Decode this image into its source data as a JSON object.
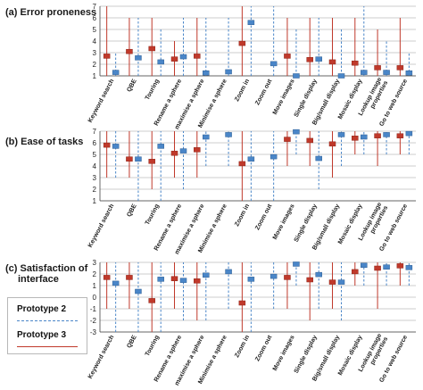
{
  "colors": {
    "prototype2": "#4a86c8",
    "prototype3": "#c0392b",
    "grid": "#9a9a9a",
    "axis": "#444444"
  },
  "legend": {
    "prototype2": "Prototype 2",
    "prototype3": "Prototype 3"
  },
  "chart_data": [
    {
      "type": "scatter",
      "title": "(a) Error proneness",
      "ylim": [
        1,
        7
      ],
      "yticks": [
        1,
        2,
        3,
        4,
        5,
        6,
        7
      ],
      "grid": true,
      "categories": [
        "Keyword search",
        "QBE",
        "Touring",
        "Rename a sphere",
        "maximise a sphere",
        "Minimise a sphere",
        "Zoom in",
        "Zoom out",
        "Move images",
        "Single display",
        "Big/small display",
        "Mosaic display",
        "Lookup image properties",
        "Go to web source"
      ],
      "series": [
        {
          "name": "Prototype 3",
          "values": [
            2.7,
            3.1,
            3.35,
            2.45,
            2.7,
            null,
            3.8,
            null,
            2.7,
            2.4,
            2.2,
            2.1,
            1.7,
            1.7
          ],
          "ranges": [
            [
              1,
              7
            ],
            [
              1,
              6
            ],
            [
              1,
              6
            ],
            [
              1,
              4
            ],
            [
              1,
              6
            ],
            null,
            [
              1,
              7
            ],
            null,
            [
              1,
              6
            ],
            [
              1,
              6
            ],
            [
              1,
              6
            ],
            [
              1,
              6
            ],
            [
              1,
              5
            ],
            [
              1,
              6
            ]
          ]
        },
        {
          "name": "Prototype 2",
          "values": [
            1.3,
            2.55,
            2.2,
            2.65,
            1.25,
            1.35,
            5.6,
            2.05,
            1.0,
            2.45,
            1.0,
            1.3,
            1.3,
            1.25
          ],
          "ranges": [
            [
              1,
              3
            ],
            [
              1,
              6
            ],
            [
              1,
              5
            ],
            [
              1,
              6
            ],
            [
              1,
              6
            ],
            [
              1,
              6
            ],
            [
              1,
              7
            ],
            [
              1,
              7
            ],
            [
              1,
              5
            ],
            [
              1,
              6
            ],
            [
              1,
              5
            ],
            [
              1,
              7
            ],
            [
              1,
              4
            ],
            [
              1,
              3
            ]
          ]
        }
      ]
    },
    {
      "type": "scatter",
      "title": "(b) Ease of tasks",
      "ylim": [
        1,
        7
      ],
      "yticks": [
        1,
        2,
        3,
        4,
        5,
        6,
        7
      ],
      "grid": true,
      "categories": [
        "Keyword search",
        "QBE",
        "Touring",
        "Rename a sphere",
        "maximise a sphere",
        "Minimise a sphere",
        "Zoom in",
        "Zoom out",
        "Move images",
        "Single display",
        "Big/small display",
        "Mosaic display",
        "Lookup image properties",
        "Go to web source"
      ],
      "series": [
        {
          "name": "Prototype 3",
          "values": [
            5.8,
            4.6,
            4.4,
            5.1,
            5.4,
            null,
            4.2,
            null,
            6.3,
            6.2,
            5.9,
            6.4,
            6.6,
            6.6
          ],
          "ranges": [
            [
              3,
              7
            ],
            [
              3,
              7
            ],
            [
              2,
              7
            ],
            [
              3,
              7
            ],
            [
              3,
              7
            ],
            null,
            [
              1,
              7
            ],
            null,
            [
              4,
              7
            ],
            [
              4,
              7
            ],
            [
              3,
              7
            ],
            [
              5,
              7
            ],
            [
              4,
              7
            ],
            [
              5,
              7
            ]
          ]
        },
        {
          "name": "Prototype 2",
          "values": [
            5.7,
            4.6,
            5.7,
            5.3,
            6.5,
            6.7,
            4.6,
            4.8,
            6.95,
            4.65,
            6.7,
            6.5,
            6.7,
            6.8
          ],
          "ranges": [
            [
              3,
              7
            ],
            [
              1,
              7
            ],
            [
              1,
              7
            ],
            [
              2,
              7
            ],
            [
              4,
              7
            ],
            [
              4,
              7
            ],
            [
              1,
              7
            ],
            [
              1,
              7
            ],
            [
              5,
              7
            ],
            [
              2,
              7
            ],
            [
              4,
              7
            ],
            [
              5,
              7
            ],
            [
              5,
              7
            ],
            [
              5,
              7
            ]
          ]
        }
      ]
    },
    {
      "type": "scatter",
      "title": "(c) Satisfaction of interface",
      "ylim": [
        -3,
        3
      ],
      "yticks": [
        -3,
        -2,
        -1,
        0,
        1,
        2,
        3
      ],
      "grid": true,
      "categories": [
        "Keyword search",
        "QBE",
        "Touring",
        "Rename a sphere",
        "maximise a sphere",
        "Minimise a sphere",
        "Zoom in",
        "Zoom out",
        "Move images",
        "Single display",
        "Big/small display",
        "Mosaic display",
        "Lookup image properties",
        "Go to web source"
      ],
      "series": [
        {
          "name": "Prototype 3",
          "values": [
            1.7,
            1.7,
            -0.3,
            1.6,
            1.4,
            null,
            -0.5,
            null,
            1.7,
            1.5,
            1.3,
            2.2,
            2.5,
            2.7
          ],
          "ranges": [
            [
              -1,
              3
            ],
            [
              -1,
              3
            ],
            [
              -3,
              3
            ],
            [
              -1,
              3
            ],
            [
              -2,
              3
            ],
            null,
            [
              -3,
              3
            ],
            null,
            [
              -1,
              3
            ],
            [
              -2,
              3
            ],
            [
              -1,
              3
            ],
            [
              1,
              3
            ],
            [
              -1,
              3
            ],
            [
              1,
              3
            ]
          ]
        },
        {
          "name": "Prototype 2",
          "values": [
            1.2,
            0.5,
            1.55,
            1.45,
            1.9,
            2.2,
            1.55,
            1.8,
            2.85,
            1.95,
            1.3,
            2.75,
            2.6,
            2.55
          ],
          "ranges": [
            [
              -3,
              3
            ],
            [
              -3,
              3
            ],
            [
              -3,
              3
            ],
            [
              -2,
              3
            ],
            [
              -2,
              3
            ],
            [
              -1,
              3
            ],
            [
              -3,
              3
            ],
            [
              -1,
              3
            ],
            [
              1,
              3
            ],
            [
              -1,
              3
            ],
            [
              -2,
              3
            ],
            [
              1,
              3
            ],
            [
              1,
              3
            ],
            [
              1,
              3
            ]
          ]
        }
      ]
    }
  ]
}
